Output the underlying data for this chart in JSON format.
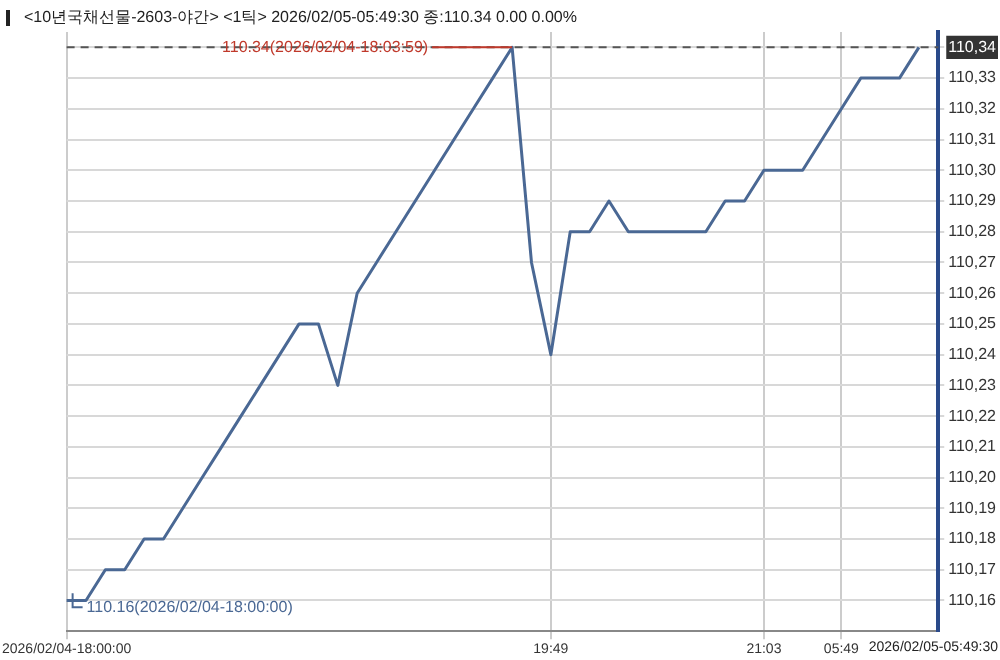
{
  "chart_data": {
    "type": "line",
    "title": "<10년국채선물-2603-야간> <1틱> 2026/02/05-05:49:30 종:110.34 0.00 0.00%",
    "categories": [
      "2026/02/04-18:00:00",
      null,
      null,
      null,
      null,
      null,
      null,
      null,
      null,
      null,
      null,
      null,
      null,
      null,
      null,
      null,
      null,
      null,
      null,
      null,
      null,
      null,
      null,
      null,
      null,
      "19:49",
      null,
      null,
      null,
      null,
      null,
      null,
      null,
      null,
      null,
      null,
      "21:03",
      null,
      null,
      null,
      "05:49",
      null,
      null,
      null,
      null,
      null
    ],
    "series": [
      {
        "color": "#4a6894",
        "values": [
          110.16,
          110.16,
          110.17,
          110.17,
          110.18,
          110.18,
          110.19,
          110.2,
          110.21,
          110.22,
          110.23,
          110.24,
          110.25,
          110.25,
          110.23,
          110.26,
          110.27,
          110.28,
          110.29,
          110.3,
          110.31,
          110.32,
          110.33,
          110.34,
          110.27,
          110.24,
          110.28,
          110.28,
          110.29,
          110.28,
          110.28,
          110.28,
          110.28,
          110.28,
          110.29,
          110.29,
          110.3,
          110.3,
          110.3,
          110.31,
          110.32,
          110.33,
          110.33,
          110.33,
          110.34,
          null
        ]
      }
    ],
    "ylim": [
      110.15,
      110.345
    ],
    "yticks": [
      {
        "value": 110.16,
        "label": "110,16"
      },
      {
        "value": 110.17,
        "label": "110,17"
      },
      {
        "value": 110.18,
        "label": "110,18"
      },
      {
        "value": 110.19,
        "label": "110,19"
      },
      {
        "value": 110.2,
        "label": "110,20"
      },
      {
        "value": 110.21,
        "label": "110,21"
      },
      {
        "value": 110.22,
        "label": "110,22"
      },
      {
        "value": 110.23,
        "label": "110,23"
      },
      {
        "value": 110.24,
        "label": "110,24"
      },
      {
        "value": 110.25,
        "label": "110,25"
      },
      {
        "value": 110.26,
        "label": "110,26"
      },
      {
        "value": 110.27,
        "label": "110,27"
      },
      {
        "value": 110.28,
        "label": "110,28"
      },
      {
        "value": 110.29,
        "label": "110,29"
      },
      {
        "value": 110.3,
        "label": "110,30"
      },
      {
        "value": 110.31,
        "label": "110,31"
      },
      {
        "value": 110.32,
        "label": "110,32"
      },
      {
        "value": 110.33,
        "label": "110,33"
      },
      {
        "value": 110.34,
        "label": "110,34"
      }
    ],
    "ref_lines": [
      {
        "axis": "y",
        "value": 110.34,
        "color": "#555555",
        "line_style": "dashed"
      }
    ],
    "annotations": [
      {
        "text": "110.34(2026/02/04-18:03:59)",
        "y": 110.34
      },
      "110.16(2026/02/04-18:00:00)",
      "2026/02/05-05:49:30"
    ],
    "grid": true,
    "legend": false,
    "marker": "none",
    "line_style": "solid"
  }
}
